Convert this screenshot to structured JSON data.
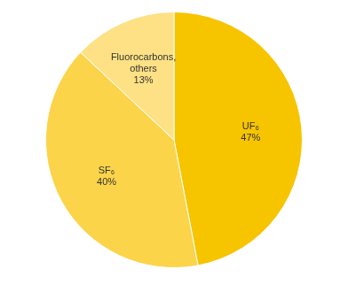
{
  "chart_data": {
    "type": "pie",
    "categories": [
      "UF₆",
      "SF₆",
      "Fluorocarbons, others"
    ],
    "values": [
      47,
      40,
      13
    ],
    "value_labels": [
      "47%",
      "40%",
      "13%"
    ],
    "colors": [
      "#f7c400",
      "#fbd44a",
      "#fde184"
    ],
    "data_labels": true
  }
}
